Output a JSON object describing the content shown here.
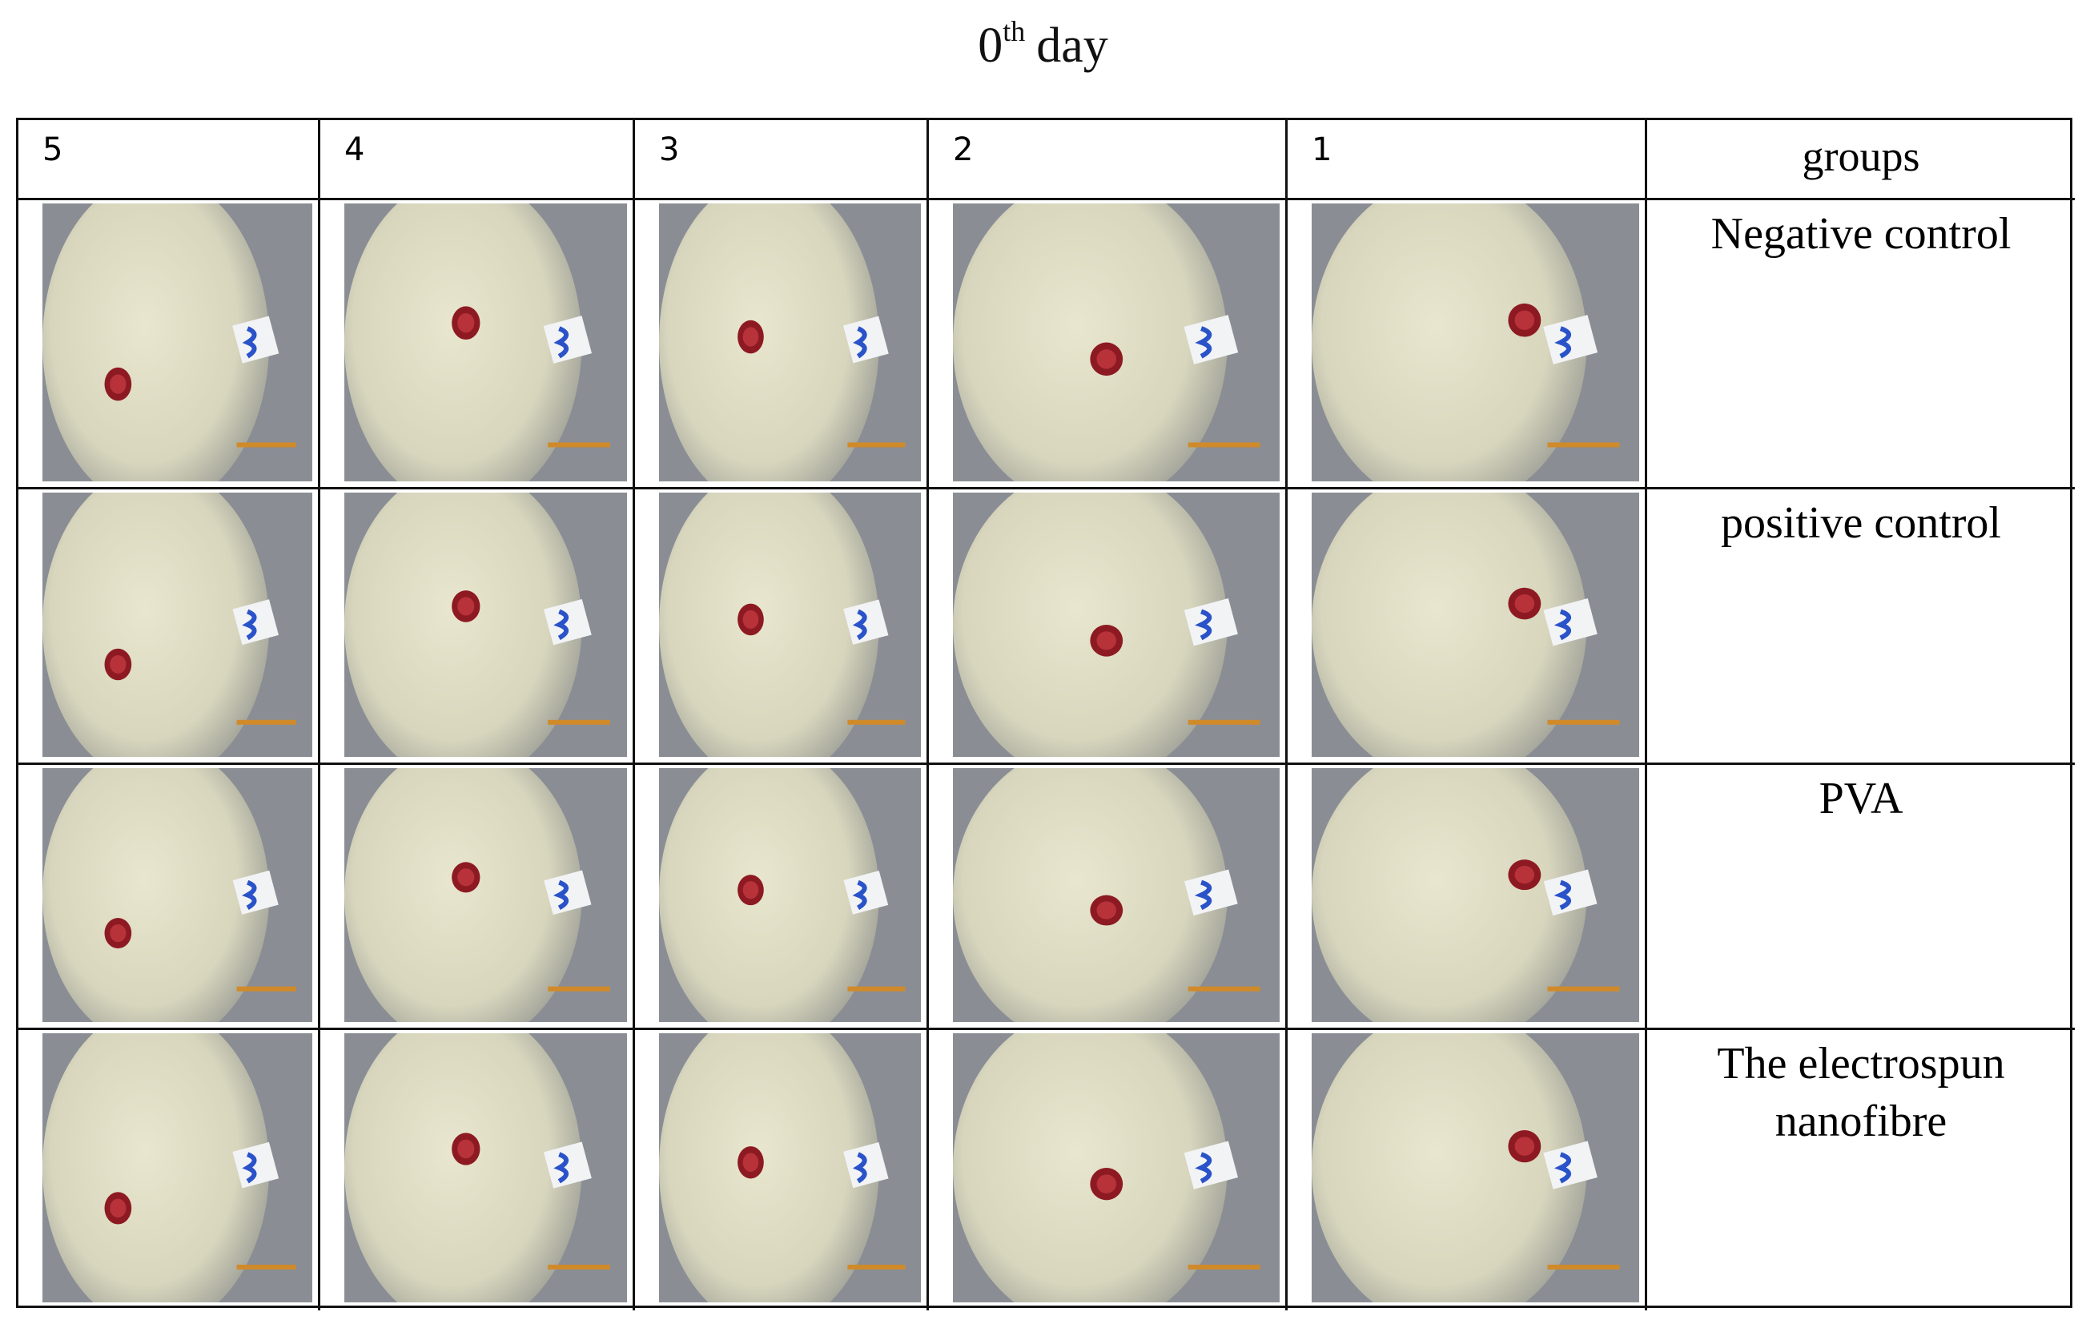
{
  "title": {
    "base": "0",
    "sup": "th",
    "rest": "day"
  },
  "table": {
    "header": [
      "5",
      "4",
      "3",
      "2",
      "1",
      "groups"
    ],
    "groups": [
      "Negative control",
      "positive control",
      "PVA",
      "The electrospun nanofibre"
    ]
  }
}
